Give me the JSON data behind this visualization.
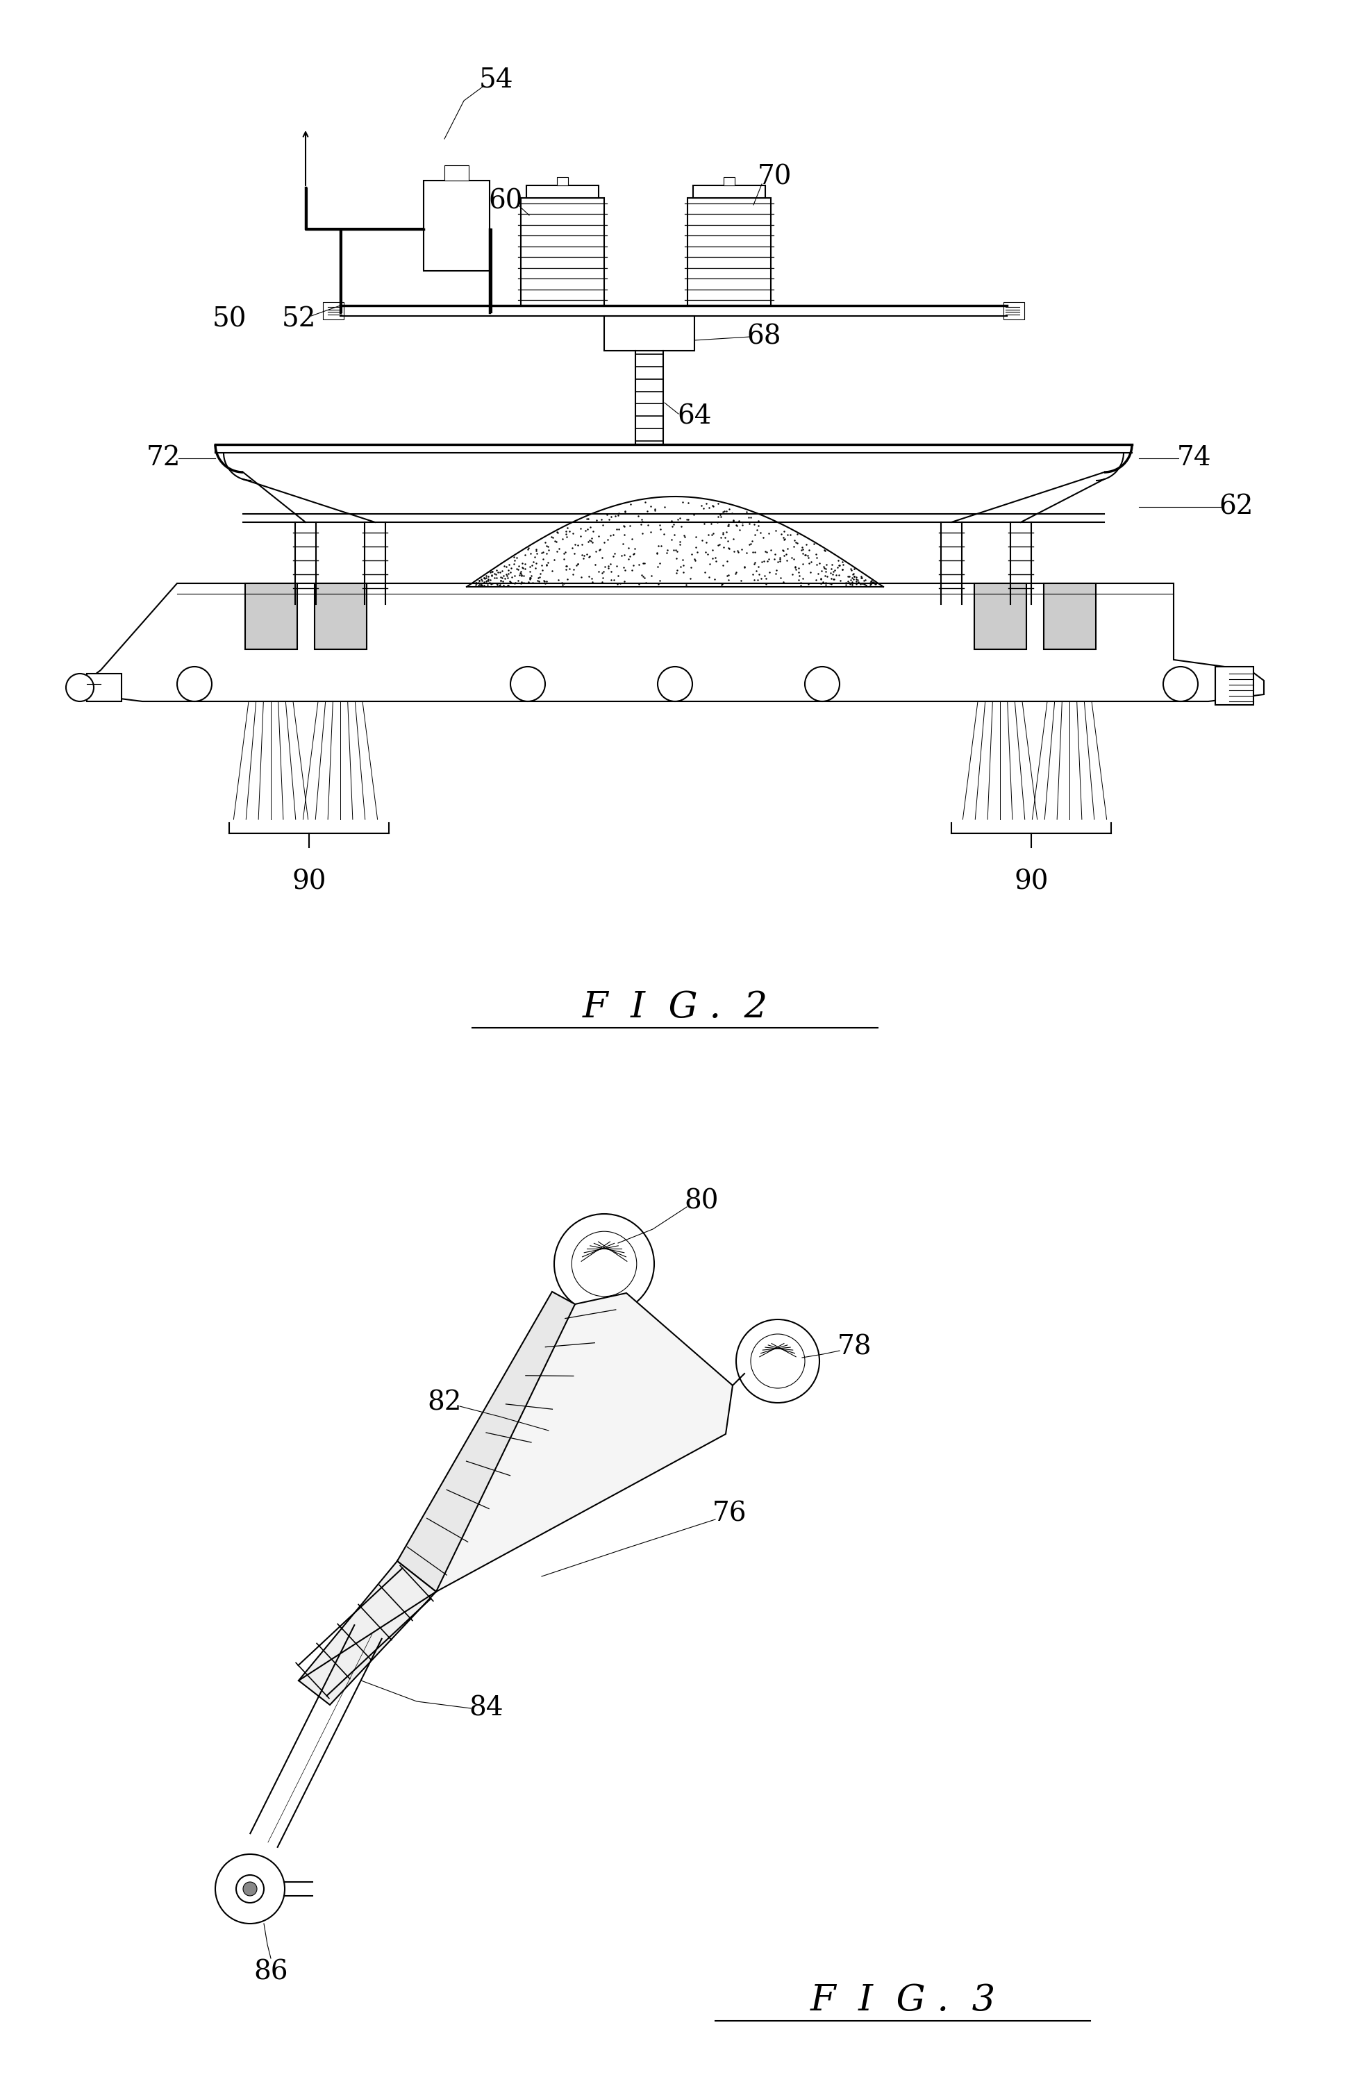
{
  "background_color": "#ffffff",
  "fig_width": 19.44,
  "fig_height": 30.24,
  "fig2_label": "F  I  G .  2",
  "fig3_label": "F  I  G .  3",
  "lw_main": 1.5,
  "lw_thin": 0.8,
  "lw_thick": 2.5
}
